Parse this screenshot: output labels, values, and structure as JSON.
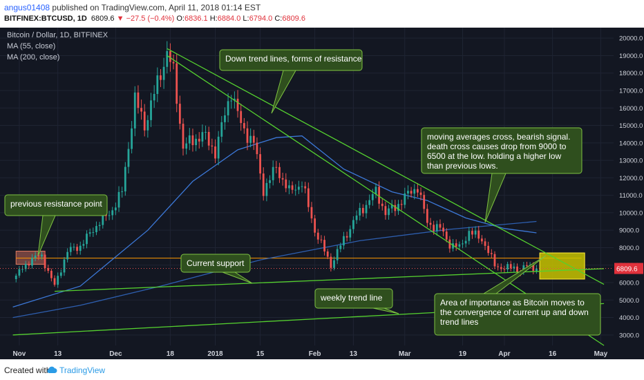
{
  "header": {
    "author": "angus01408",
    "published": "published on TradingView.com, April 11, 2018 01:14 EST",
    "symbol": "BITFINEX:BTCUSD, 1D",
    "last": "6809.6",
    "change": "−27.5 (−0.4%)",
    "o_label": "O:",
    "o": "6836.1",
    "h_label": "H:",
    "h": "6884.0",
    "l_label": "L:",
    "l": "6794.0",
    "c_label": "C:",
    "c": "6809.6"
  },
  "overlay": {
    "instrument": "Bitcoin / Dollar, 1D, BITFINEX",
    "ma55": "MA (55, close)",
    "ma200": "MA (200, close)"
  },
  "footer": {
    "created_with": "Created with",
    "brand": "TradingView"
  },
  "colors": {
    "background": "#131722",
    "up_candle": "#26a69a",
    "down_candle": "#ef5350",
    "ma55": "#3c78d8",
    "ma200": "#2e5fb0",
    "trend_line": "#55d12f",
    "support_line": "#ff9800",
    "annotation_fill": "#2f4f1e",
    "annotation_border": "#7fc342"
  },
  "chart_data": {
    "type": "candlestick",
    "title": "Bitcoin / Dollar, 1D, BITFINEX",
    "y_axis": {
      "ticks": [
        "20000.0",
        "19000.0",
        "18000.0",
        "17000.0",
        "16000.0",
        "15000.0",
        "14000.0",
        "13000.0",
        "12000.0",
        "11000.0",
        "10000.0",
        "9000.0",
        "8000.0",
        "7000.0",
        "6000.0",
        "5000.0",
        "4000.0",
        "3000.0"
      ],
      "range": [
        2400,
        20600
      ],
      "last_price_label": "6809.6"
    },
    "x_axis": {
      "ticks": [
        "Nov",
        "13",
        "Dec",
        "18",
        "2018",
        "15",
        "Feb",
        "13",
        "Mar",
        "19",
        "Apr",
        "16",
        "May"
      ]
    },
    "price_path": [
      [
        "2017-10-30",
        6200
      ],
      [
        "2017-11-05",
        7400
      ],
      [
        "2017-11-08",
        7500
      ],
      [
        "2017-11-12",
        5800
      ],
      [
        "2017-11-16",
        7800
      ],
      [
        "2017-11-20",
        8100
      ],
      [
        "2017-11-26",
        9500
      ],
      [
        "2017-11-29",
        9900
      ],
      [
        "2017-12-03",
        11200
      ],
      [
        "2017-12-07",
        16500
      ],
      [
        "2017-12-10",
        15000
      ],
      [
        "2017-12-13",
        16800
      ],
      [
        "2017-12-17",
        19200
      ],
      [
        "2017-12-19",
        18000
      ],
      [
        "2017-12-22",
        13800
      ],
      [
        "2017-12-24",
        14000
      ],
      [
        "2017-12-28",
        14500
      ],
      [
        "2018-01-01",
        13500
      ],
      [
        "2018-01-06",
        17000
      ],
      [
        "2018-01-09",
        15000
      ],
      [
        "2018-01-13",
        14000
      ],
      [
        "2018-01-16",
        11300
      ],
      [
        "2018-01-20",
        12600
      ],
      [
        "2018-01-24",
        11200
      ],
      [
        "2018-01-28",
        11700
      ],
      [
        "2018-02-01",
        9000
      ],
      [
        "2018-02-06",
        7000
      ],
      [
        "2018-02-10",
        8500
      ],
      [
        "2018-02-14",
        9800
      ],
      [
        "2018-02-20",
        11200
      ],
      [
        "2018-02-23",
        10000
      ],
      [
        "2018-02-26",
        10300
      ],
      [
        "2018-03-01",
        10900
      ],
      [
        "2018-03-05",
        11500
      ],
      [
        "2018-03-08",
        9400
      ],
      [
        "2018-03-12",
        9100
      ],
      [
        "2018-03-15",
        8200
      ],
      [
        "2018-03-18",
        8000
      ],
      [
        "2018-03-21",
        8900
      ],
      [
        "2018-03-25",
        8500
      ],
      [
        "2018-03-29",
        7000
      ],
      [
        "2018-04-01",
        6800
      ],
      [
        "2018-04-04",
        6900
      ],
      [
        "2018-04-06",
        6600
      ],
      [
        "2018-04-08",
        7000
      ],
      [
        "2018-04-11",
        6809.6
      ]
    ],
    "ma55": [
      [
        "2017-10-30",
        4600
      ],
      [
        "2017-11-20",
        5800
      ],
      [
        "2017-12-11",
        9000
      ],
      [
        "2017-12-25",
        11800
      ],
      [
        "2018-01-08",
        13600
      ],
      [
        "2018-01-20",
        14300
      ],
      [
        "2018-01-28",
        14400
      ],
      [
        "2018-02-10",
        12500
      ],
      [
        "2018-02-25",
        11200
      ],
      [
        "2018-03-08",
        10700
      ],
      [
        "2018-03-20",
        9700
      ],
      [
        "2018-04-01",
        9100
      ],
      [
        "2018-04-11",
        8850
      ]
    ],
    "ma200": [
      [
        "2017-10-30",
        4000
      ],
      [
        "2017-11-20",
        4700
      ],
      [
        "2017-12-15",
        5800
      ],
      [
        "2018-01-15",
        7300
      ],
      [
        "2018-02-15",
        8400
      ],
      [
        "2018-03-15",
        9050
      ],
      [
        "2018-04-11",
        9500
      ]
    ],
    "drawings": {
      "resistance_box": {
        "from": "2017-10-31",
        "to": "2017-11-09",
        "low": 7050,
        "high": 7800
      },
      "support_horizontal": {
        "y": 7400,
        "from": "2017-10-31",
        "to": "2018-04-25"
      },
      "downtrend_upper": {
        "from": [
          "2017-12-17",
          19400
        ],
        "to": [
          "2018-05-02",
          5900
        ]
      },
      "downtrend_lower": {
        "from": [
          "2017-12-17",
          19000
        ],
        "to": [
          "2018-05-02",
          2400
        ]
      },
      "current_support": {
        "from": [
          "2017-11-12",
          5500
        ],
        "to": [
          "2018-05-02",
          6800
        ]
      },
      "weekly_trend": {
        "from": [
          "2017-10-30",
          3000
        ],
        "to": [
          "2018-05-02",
          4800
        ]
      },
      "target_box": {
        "from": "2018-04-12",
        "to": "2018-04-26",
        "low": 6200,
        "high": 7700
      }
    },
    "annotations": [
      {
        "text": "Down trend lines, forms of resistance"
      },
      {
        "text": "moving averages cross, bearish signal. death cross causes drop from 9000 to 6500 at the low. holding a higher low than previous lows."
      },
      {
        "text": "previous resistance point"
      },
      {
        "text": "Current support"
      },
      {
        "text": "weekly trend line"
      },
      {
        "text": "Area of importance as Bitcoin moves to the convergence of current up and down trend lines"
      }
    ]
  }
}
